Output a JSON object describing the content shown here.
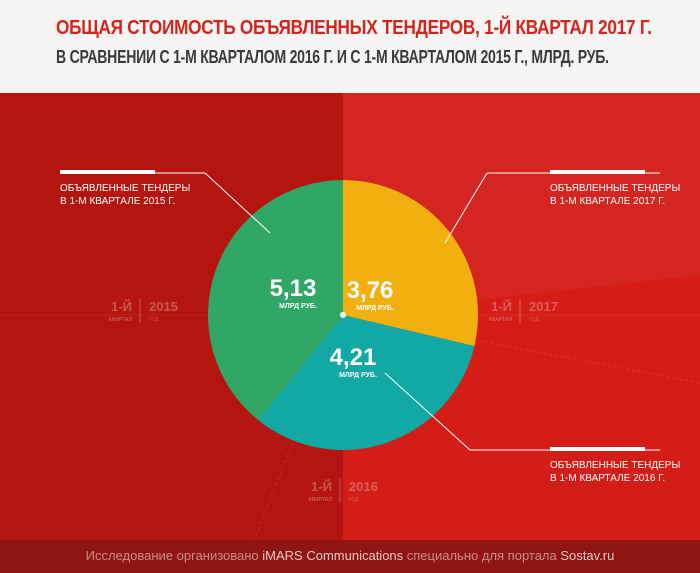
{
  "header": {
    "title": "ОБЩАЯ СТОИМОСТЬ ОБЪЯВЛЕННЫХ ТЕНДЕРОВ, 1-Й КВАРТАЛ 2017 Г.",
    "subtitle": "В СРАВНЕНИИ С 1-М КВАРТАЛОМ 2016 Г. И С 1-М КВАРТАЛОМ 2015 Г., МЛРД. РУБ."
  },
  "chart_data": {
    "type": "pie",
    "unit": "МЛРД РУБ.",
    "slices": [
      {
        "value": 3.76,
        "value_label": "3,76",
        "unit_label": "МЛРД РУБ.",
        "color": "#f2b010",
        "callout": [
          "ОБЪЯВЛЕННЫЕ ТЕНДЕРЫ",
          "В 1-М КВАРТАЛЕ 2017 Г."
        ],
        "period": {
          "quarter": "1-Й",
          "quarter_caption": "КВАРТАЛ",
          "year": "2017",
          "year_caption": "ГОД"
        }
      },
      {
        "value": 4.21,
        "value_label": "4,21",
        "unit_label": "МЛРД РУБ.",
        "color": "#12a8a4",
        "callout": [
          "ОБЪЯВЛЕННЫЕ ТЕНДЕРЫ",
          "В 1-М КВАРТАЛЕ 2016 Г."
        ],
        "period": {
          "quarter": "1-Й",
          "quarter_caption": "КВАРТАЛ",
          "year": "2016",
          "year_caption": "ГОД"
        }
      },
      {
        "value": 5.13,
        "value_label": "5,13",
        "unit_label": "МЛРД РУБ.",
        "color": "#30a764",
        "callout": [
          "ОБЪЯВЛЕННЫЕ ТЕНДЕРЫ",
          "В 1-М КВАРТАЛЕ 2015 Г."
        ],
        "period": {
          "quarter": "1-Й",
          "quarter_caption": "КВАРТАЛ",
          "year": "2015",
          "year_caption": "ГОД"
        }
      }
    ]
  },
  "footer": {
    "prefix": "Исследование организовано ",
    "org": "iMARS Communications",
    "middle": " специально для портала ",
    "site": "Sostav.ru"
  },
  "colors": {
    "accent": "#d4241e",
    "background_left": "#b5150f",
    "background_right": "#d41d17",
    "footer": "#8e1512"
  }
}
